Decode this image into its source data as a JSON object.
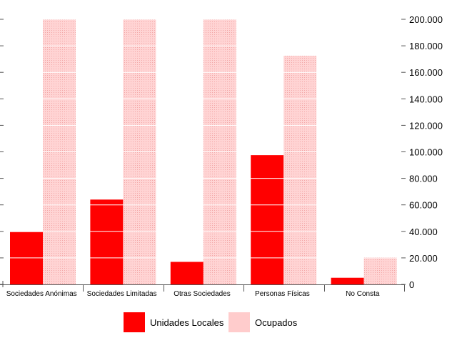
{
  "chart_data": {
    "type": "bar",
    "categories": [
      "Sociedades Anónimas",
      "Sociedades Limitadas",
      "Otras Sociedades",
      "Personas Físicas",
      "No Consta"
    ],
    "series": [
      {
        "name": "Unidades Locales",
        "values": [
          39500,
          64000,
          17000,
          97500,
          5000
        ],
        "color": "#ff0000"
      },
      {
        "name": "Ocupados",
        "values": [
          200000,
          200000,
          200000,
          172500,
          20500
        ],
        "color": "#ffcccc"
      }
    ],
    "title": "",
    "xlabel": "",
    "ylabel": "",
    "ylim": [
      0,
      200000
    ],
    "yticks": [
      "0",
      "20.000",
      "40.000",
      "60.000",
      "80.000",
      "100.000",
      "120.000",
      "140.000",
      "160.000",
      "180.000",
      "200.000"
    ],
    "grid": true,
    "grid_color": "#ffffff",
    "y_axis_side": "right",
    "legend_position": "bottom-center"
  }
}
